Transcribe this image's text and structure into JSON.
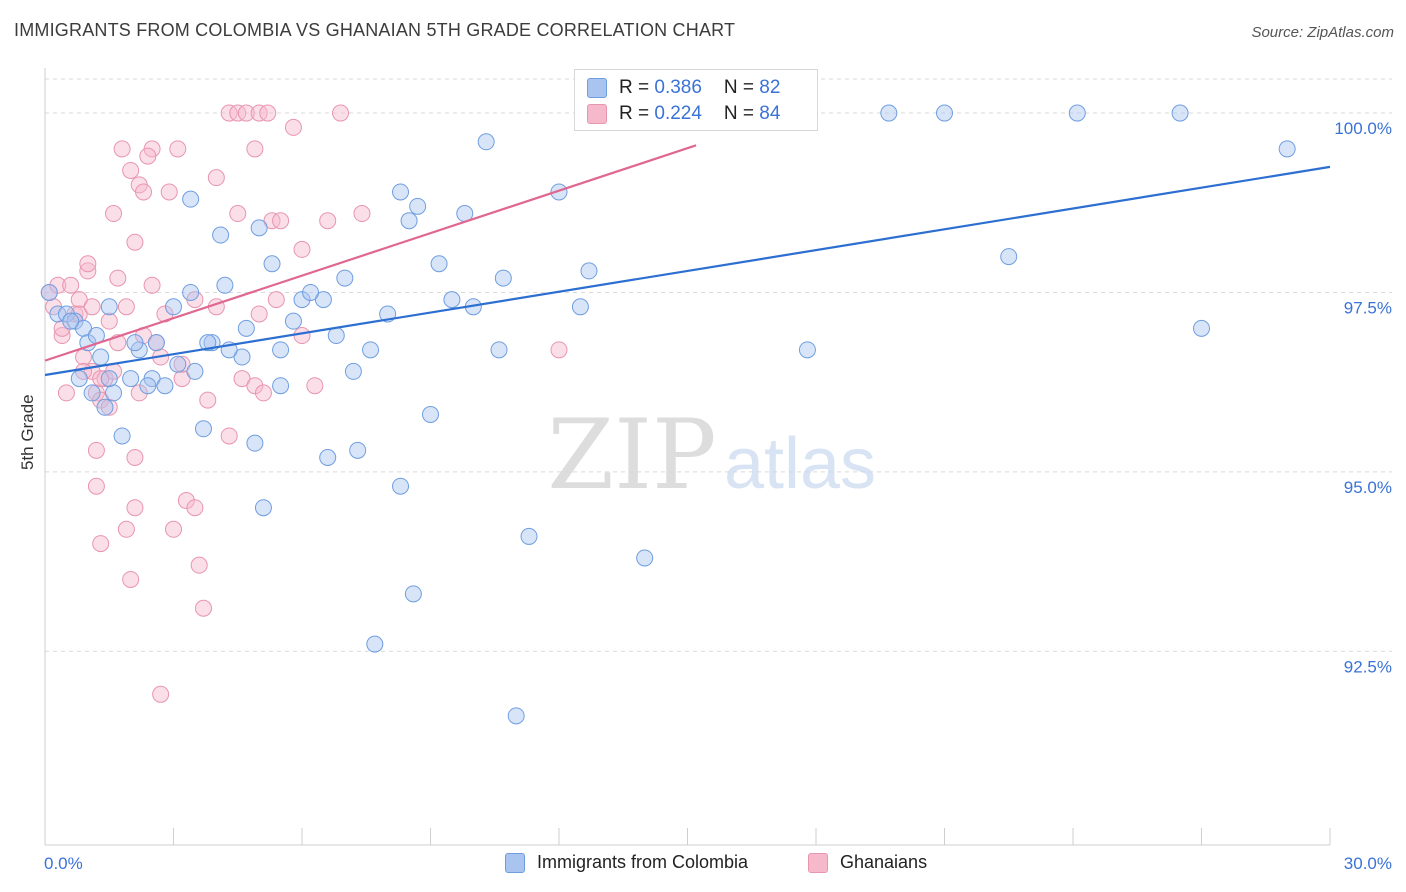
{
  "title": "IMMIGRANTS FROM COLOMBIA VS GHANAIAN 5TH GRADE CORRELATION CHART",
  "source": "Source: ZipAtlas.com",
  "watermark": {
    "part1": "ZIP",
    "part2": "atlas"
  },
  "legend_top": {
    "rows": [
      {
        "r_label": "R = ",
        "r_value": "0.386",
        "n_label": "N = ",
        "n_value": "82"
      },
      {
        "r_label": "R = ",
        "r_value": "0.224",
        "n_label": "N = ",
        "n_value": "84"
      }
    ]
  },
  "legend_bottom": {
    "items": [
      "Immigrants from Colombia",
      "Ghanaians"
    ]
  },
  "colors": {
    "blue_fill": "#a9c4ef",
    "blue_stroke": "#6f9ee0",
    "blue_line": "#2c6fd1",
    "pink_fill": "#f6b8cb",
    "pink_stroke": "#e895b0",
    "pink_line": "#e06890",
    "axis_label": "#3a72d6",
    "grid": "#d9d9d9"
  },
  "chart_data": {
    "type": "scatter",
    "title": "IMMIGRANTS FROM COLOMBIA VS GHANAIAN 5TH GRADE CORRELATION CHART",
    "xlabel": "",
    "ylabel": "5th Grade",
    "xlim": [
      0,
      30
    ],
    "ylim": [
      89.8,
      100.6
    ],
    "x_tick_labels": [
      "0.0%",
      "30.0%"
    ],
    "y_ticks": [
      92.5,
      95.0,
      97.5,
      100.0
    ],
    "y_tick_labels": [
      "92.5%",
      "95.0%",
      "97.5%",
      "100.0%"
    ],
    "series": [
      {
        "name": "Immigrants from Colombia",
        "r": 0.386,
        "n": 82,
        "trend": {
          "x": [
            0,
            30
          ],
          "y": [
            96.35,
            99.25
          ]
        },
        "points": [
          [
            0.1,
            97.5
          ],
          [
            0.3,
            97.2
          ],
          [
            0.5,
            97.2
          ],
          [
            0.7,
            97.1
          ],
          [
            0.9,
            97.0
          ],
          [
            1.0,
            96.8
          ],
          [
            1.2,
            96.9
          ],
          [
            1.3,
            96.6
          ],
          [
            1.5,
            97.3
          ],
          [
            1.6,
            96.1
          ],
          [
            1.4,
            95.9
          ],
          [
            1.5,
            96.3
          ],
          [
            1.8,
            95.5
          ],
          [
            2.0,
            96.3
          ],
          [
            2.2,
            96.7
          ],
          [
            2.5,
            96.3
          ],
          [
            2.6,
            96.8
          ],
          [
            2.8,
            96.2
          ],
          [
            3.0,
            97.3
          ],
          [
            3.1,
            96.5
          ],
          [
            3.4,
            97.5
          ],
          [
            3.5,
            96.4
          ],
          [
            3.9,
            96.8
          ],
          [
            3.7,
            95.6
          ],
          [
            4.1,
            98.3
          ],
          [
            4.2,
            97.6
          ],
          [
            4.6,
            96.6
          ],
          [
            4.7,
            97.0
          ],
          [
            4.9,
            95.4
          ],
          [
            5.0,
            98.4
          ],
          [
            5.5,
            96.7
          ],
          [
            5.8,
            97.1
          ],
          [
            6.0,
            97.4
          ],
          [
            6.5,
            97.4
          ],
          [
            6.6,
            95.2
          ],
          [
            7.0,
            97.7
          ],
          [
            7.2,
            96.4
          ],
          [
            7.3,
            95.3
          ],
          [
            7.6,
            96.7
          ],
          [
            8.0,
            97.2
          ],
          [
            8.3,
            98.9
          ],
          [
            8.5,
            98.5
          ],
          [
            8.7,
            98.7
          ],
          [
            8.3,
            94.8
          ],
          [
            9.2,
            97.9
          ],
          [
            9.5,
            97.4
          ],
          [
            9.0,
            95.8
          ],
          [
            10.0,
            97.3
          ],
          [
            10.3,
            99.6
          ],
          [
            10.6,
            96.7
          ],
          [
            10.7,
            97.7
          ],
          [
            11.0,
            91.6
          ],
          [
            11.3,
            94.1
          ],
          [
            12.0,
            98.9
          ],
          [
            12.7,
            97.8
          ],
          [
            14.0,
            93.8
          ],
          [
            15.0,
            100.0
          ],
          [
            17.8,
            96.7
          ],
          [
            19.7,
            100.0
          ],
          [
            21.0,
            100.0
          ],
          [
            22.5,
            98.0
          ],
          [
            24.1,
            100.0
          ],
          [
            26.5,
            100.0
          ],
          [
            27.0,
            97.0
          ],
          [
            29.0,
            99.5
          ],
          [
            8.6,
            93.3
          ],
          [
            7.7,
            92.6
          ],
          [
            5.1,
            94.5
          ],
          [
            3.8,
            96.8
          ],
          [
            5.5,
            96.2
          ],
          [
            4.3,
            96.7
          ],
          [
            3.4,
            98.8
          ],
          [
            2.4,
            96.2
          ],
          [
            0.6,
            97.1
          ],
          [
            6.2,
            97.5
          ],
          [
            9.8,
            98.6
          ],
          [
            12.5,
            97.3
          ],
          [
            0.8,
            96.3
          ],
          [
            1.1,
            96.1
          ],
          [
            2.1,
            96.8
          ],
          [
            5.3,
            97.9
          ],
          [
            6.8,
            96.9
          ]
        ]
      },
      {
        "name": "Ghanaians",
        "r": 0.224,
        "n": 84,
        "trend": {
          "x": [
            0,
            15.2
          ],
          "y": [
            96.55,
            99.55
          ]
        },
        "points": [
          [
            0.1,
            97.5
          ],
          [
            0.2,
            97.3
          ],
          [
            0.3,
            97.6
          ],
          [
            0.4,
            96.9
          ],
          [
            0.6,
            97.6
          ],
          [
            0.7,
            97.2
          ],
          [
            0.8,
            97.4
          ],
          [
            1.0,
            97.8
          ],
          [
            0.9,
            96.6
          ],
          [
            1.1,
            96.4
          ],
          [
            1.2,
            96.1
          ],
          [
            1.3,
            96.0
          ],
          [
            1.4,
            96.3
          ],
          [
            1.5,
            95.9
          ],
          [
            1.6,
            96.4
          ],
          [
            1.7,
            97.7
          ],
          [
            1.8,
            99.5
          ],
          [
            2.0,
            99.2
          ],
          [
            2.2,
            99.0
          ],
          [
            2.3,
            98.9
          ],
          [
            2.5,
            99.5
          ],
          [
            2.6,
            96.8
          ],
          [
            2.7,
            96.6
          ],
          [
            2.9,
            98.9
          ],
          [
            3.2,
            96.3
          ],
          [
            3.3,
            94.6
          ],
          [
            3.5,
            94.5
          ],
          [
            3.6,
            93.7
          ],
          [
            3.8,
            96.0
          ],
          [
            4.0,
            97.3
          ],
          [
            4.3,
            95.5
          ],
          [
            4.5,
            98.6
          ],
          [
            4.6,
            96.3
          ],
          [
            4.9,
            96.2
          ],
          [
            5.1,
            96.1
          ],
          [
            5.3,
            98.5
          ],
          [
            5.5,
            98.5
          ],
          [
            5.8,
            99.8
          ],
          [
            6.0,
            98.1
          ],
          [
            6.3,
            96.2
          ],
          [
            0.5,
            96.1
          ],
          [
            1.2,
            95.3
          ],
          [
            1.2,
            94.8
          ],
          [
            1.3,
            94.0
          ],
          [
            1.9,
            94.2
          ],
          [
            2.0,
            93.5
          ],
          [
            2.1,
            94.5
          ],
          [
            2.1,
            95.2
          ],
          [
            3.0,
            94.2
          ],
          [
            3.7,
            93.1
          ],
          [
            2.7,
            91.9
          ],
          [
            4.3,
            100.0
          ],
          [
            4.5,
            100.0
          ],
          [
            4.7,
            100.0
          ],
          [
            5.0,
            100.0
          ],
          [
            5.2,
            100.0
          ],
          [
            6.9,
            100.0
          ],
          [
            7.4,
            98.6
          ],
          [
            12.0,
            96.7
          ],
          [
            1.6,
            98.6
          ],
          [
            2.4,
            99.4
          ],
          [
            3.1,
            99.5
          ],
          [
            4.0,
            99.1
          ],
          [
            2.2,
            96.1
          ],
          [
            1.9,
            97.3
          ],
          [
            0.8,
            97.2
          ],
          [
            1.5,
            97.1
          ],
          [
            2.8,
            97.2
          ],
          [
            5.0,
            97.2
          ],
          [
            5.4,
            97.4
          ],
          [
            6.0,
            96.9
          ],
          [
            1.0,
            97.9
          ],
          [
            0.4,
            97.0
          ],
          [
            1.1,
            97.3
          ],
          [
            2.5,
            97.6
          ],
          [
            3.5,
            97.4
          ],
          [
            2.1,
            98.2
          ],
          [
            4.9,
            99.5
          ],
          [
            1.3,
            96.3
          ],
          [
            0.9,
            96.4
          ],
          [
            3.2,
            96.5
          ],
          [
            6.6,
            98.5
          ],
          [
            2.3,
            96.9
          ],
          [
            1.7,
            96.8
          ]
        ]
      }
    ]
  }
}
